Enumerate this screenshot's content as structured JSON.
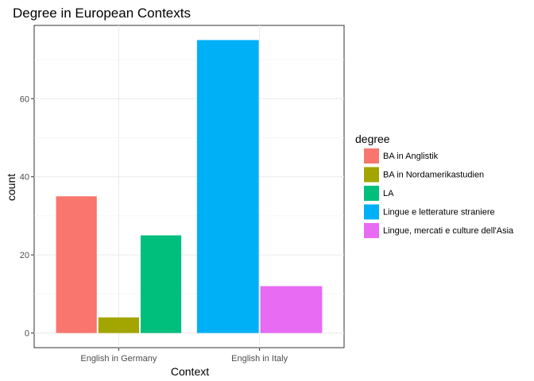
{
  "chart_data": {
    "type": "bar",
    "title": "Degree in European Contexts",
    "xlabel": "Context",
    "ylabel": "count",
    "ylim": [
      -3.75,
      78.75
    ],
    "yticks": [
      0,
      20,
      40,
      60
    ],
    "grid": true,
    "legend_position": "right",
    "legend_title": "degree",
    "categories": [
      "English in Germany",
      "English in Italy"
    ],
    "series": [
      {
        "name": "BA in Anglistik",
        "color": "#F8766D",
        "values": [
          35,
          null
        ]
      },
      {
        "name": "BA in Nordamerikastudien",
        "color": "#A3A500",
        "values": [
          4,
          null
        ]
      },
      {
        "name": "LA",
        "color": "#00BF7D",
        "values": [
          25,
          null
        ]
      },
      {
        "name": "Lingue e letterature straniere",
        "color": "#00B0F6",
        "values": [
          null,
          75
        ]
      },
      {
        "name": "Lingue, mercati e culture dell'Asia",
        "color": "#E76BF3",
        "values": [
          null,
          12
        ]
      }
    ]
  }
}
